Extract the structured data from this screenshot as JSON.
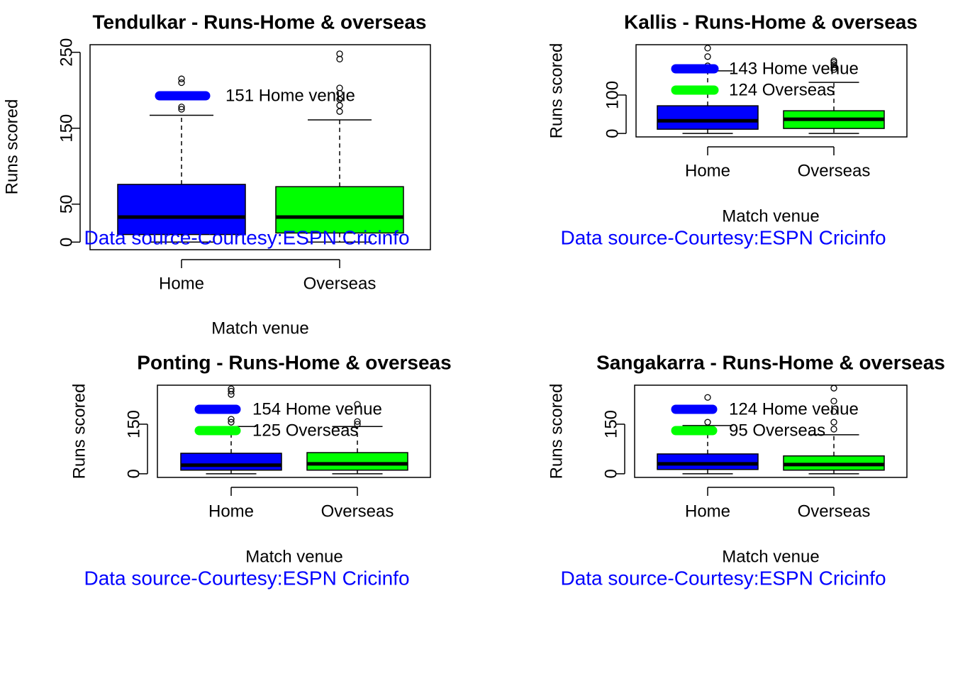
{
  "chart_data": [
    {
      "type": "box",
      "title": "Tendulkar - Runs-Home & overseas",
      "x_label": "Match venue",
      "y_label": "Runs scored",
      "categories": [
        "Home",
        "Overseas"
      ],
      "colors": [
        "#0000ff",
        "#00ff00"
      ],
      "ylim": [
        -10,
        260
      ],
      "yticks": [
        0,
        50,
        150,
        250
      ],
      "boxes": [
        {
          "low": 0,
          "q1": 10,
          "median": 33,
          "q3": 76,
          "high": 167,
          "outliers": [
            175,
            178,
            210,
            215
          ]
        },
        {
          "low": 0,
          "q1": 12,
          "median": 33,
          "q3": 73,
          "high": 161,
          "outliers": [
            172,
            180,
            188,
            196,
            203,
            241,
            248
          ]
        }
      ],
      "legend": [
        "151 Home venue"
      ],
      "source": "Data source-Courtesy:ESPN Cricinfo"
    },
    {
      "type": "box",
      "title": "Kallis - Runs-Home & overseas",
      "x_label": "Match venue",
      "y_label": "Runs scored",
      "categories": [
        "Home",
        "Overseas"
      ],
      "colors": [
        "#0000ff",
        "#00ff00"
      ],
      "ylim": [
        -9,
        231
      ],
      "yticks": [
        0,
        100
      ],
      "boxes": [
        {
          "low": 0,
          "q1": 11,
          "median": 33,
          "q3": 72,
          "high": 163,
          "outliers": [
            176,
            200,
            222
          ]
        },
        {
          "low": 0,
          "q1": 13,
          "median": 37,
          "q3": 59,
          "high": 133,
          "outliers": [
            166,
            172,
            179,
            185,
            189
          ]
        }
      ],
      "legend": [
        "143 Home venue",
        "124 Overseas"
      ],
      "source": "Data source-Courtesy:ESPN Cricinfo"
    },
    {
      "type": "box",
      "title": "Ponting - Runs-Home & overseas",
      "x_label": "Match venue",
      "y_label": "Runs scored",
      "categories": [
        "Home",
        "Overseas"
      ],
      "colors": [
        "#0000ff",
        "#00ff00"
      ],
      "ylim": [
        -11,
        268
      ],
      "yticks": [
        0,
        150
      ],
      "boxes": [
        {
          "low": 0,
          "q1": 11,
          "median": 26,
          "q3": 62,
          "high": 143,
          "outliers": [
            156,
            165,
            240,
            250,
            257
          ]
        },
        {
          "low": 0,
          "q1": 11,
          "median": 30,
          "q3": 64,
          "high": 143,
          "outliers": [
            150,
            158,
            210
          ]
        }
      ],
      "legend": [
        "154 Home venue",
        "125 Overseas"
      ],
      "source": "Data source-Courtesy:ESPN Cricinfo"
    },
    {
      "type": "box",
      "title": "Sangakarra - Runs-Home & overseas",
      "x_label": "Match venue",
      "y_label": "Runs scored",
      "categories": [
        "Home",
        "Overseas"
      ],
      "colors": [
        "#0000ff",
        "#00ff00"
      ],
      "ylim": [
        -11,
        268
      ],
      "yticks": [
        0,
        150
      ],
      "boxes": [
        {
          "low": 0,
          "q1": 13,
          "median": 30,
          "q3": 60,
          "high": 146,
          "outliers": [
            156,
            231
          ]
        },
        {
          "low": 0,
          "q1": 11,
          "median": 28,
          "q3": 54,
          "high": 118,
          "outliers": [
            135,
            156,
            188,
            220,
            259
          ]
        }
      ],
      "legend": [
        "124 Home venue",
        "95 Overseas"
      ],
      "source": "Data source-Courtesy:ESPN Cricinfo"
    }
  ]
}
